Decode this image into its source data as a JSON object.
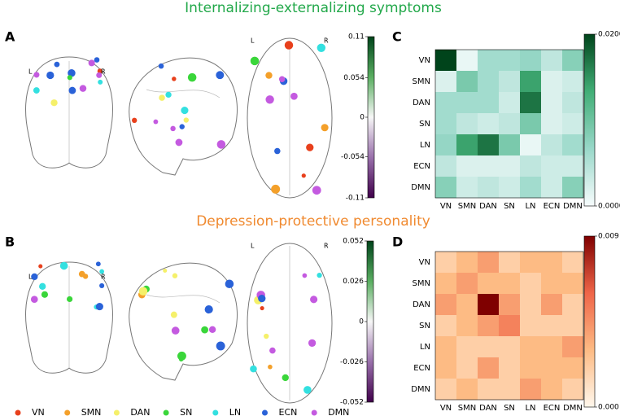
{
  "titles": {
    "top": {
      "text": "Internalizing-externalizing symptoms",
      "color": "#22a84a"
    },
    "bottom": {
      "text": "Depression-protective personality",
      "color": "#f08a30"
    }
  },
  "panel_labels": [
    "A",
    "B",
    "C",
    "D"
  ],
  "hemisphere_labels": {
    "left": "L",
    "right": "R"
  },
  "networks": [
    {
      "name": "VN",
      "color": "#e8401c"
    },
    {
      "name": "SMN",
      "color": "#f4a02a"
    },
    {
      "name": "DAN",
      "color": "#f5f06a"
    },
    {
      "name": "SN",
      "color": "#3ad63a"
    },
    {
      "name": "LN",
      "color": "#33e0e0"
    },
    {
      "name": "ECN",
      "color": "#2a62d8"
    },
    {
      "name": "DMN",
      "color": "#c45ae0"
    }
  ],
  "chart_data": [
    {
      "type": "heatmap",
      "x_categories": [
        "VN",
        "SMN",
        "DAN",
        "SN",
        "LN",
        "ECN",
        "DMN"
      ],
      "y_categories": [
        "VN",
        "SMN",
        "DAN",
        "SN",
        "LN",
        "ECN",
        "DMN"
      ],
      "values": [
        [
          0.02,
          0.001,
          0.006,
          0.006,
          0.007,
          0.004,
          0.008
        ],
        [
          0.002,
          0.009,
          0.006,
          0.004,
          0.014,
          0.002,
          0.003
        ],
        [
          0.006,
          0.006,
          0.006,
          0.003,
          0.017,
          0.002,
          0.004
        ],
        [
          0.006,
          0.004,
          0.003,
          0.004,
          0.009,
          0.002,
          0.003
        ],
        [
          0.007,
          0.014,
          0.017,
          0.009,
          0.001,
          0.004,
          0.006
        ],
        [
          0.004,
          0.002,
          0.002,
          0.002,
          0.004,
          0.003,
          0.003
        ],
        [
          0.008,
          0.003,
          0.004,
          0.003,
          0.006,
          0.003,
          0.008
        ]
      ],
      "colormap": [
        "#f7fcfd",
        "#99d8c9",
        "#41ae76",
        "#00441b"
      ],
      "zlim": [
        0,
        0.02
      ],
      "zticks": [
        {
          "value": 0.02,
          "label": "0.0200"
        },
        {
          "value": 0,
          "label": "0.0000"
        }
      ]
    },
    {
      "type": "heatmap",
      "x_categories": [
        "VN",
        "SMN",
        "DAN",
        "SN",
        "LN",
        "ECN",
        "DMN"
      ],
      "y_categories": [
        "VN",
        "SMN",
        "DAN",
        "SN",
        "LN",
        "ECN",
        "DMN"
      ],
      "values": [
        [
          0.002,
          0.003,
          0.004,
          0.002,
          0.003,
          0.003,
          0.002
        ],
        [
          0.003,
          0.004,
          0.003,
          0.003,
          0.002,
          0.003,
          0.003
        ],
        [
          0.004,
          0.003,
          0.009,
          0.004,
          0.002,
          0.004,
          0.002
        ],
        [
          0.002,
          0.003,
          0.004,
          0.005,
          0.002,
          0.002,
          0.002
        ],
        [
          0.003,
          0.002,
          0.002,
          0.002,
          0.003,
          0.003,
          0.004
        ],
        [
          0.003,
          0.002,
          0.004,
          0.002,
          0.003,
          0.003,
          0.003
        ],
        [
          0.002,
          0.003,
          0.002,
          0.002,
          0.004,
          0.003,
          0.002
        ]
      ],
      "colormap": [
        "#fff7ec",
        "#fdbb84",
        "#ef6548",
        "#7f0000"
      ],
      "zlim": [
        0,
        0.009
      ],
      "zticks": [
        0.009,
        {
          "value": 0,
          "label": "0.000"
        }
      ]
    },
    {
      "type": "colorbar",
      "colormap": [
        "#40004b",
        "#9970ab",
        "#f7f7f7",
        "#5aae61",
        "#00441b"
      ],
      "zlim": [
        -0.11,
        0.11
      ],
      "zticks": [
        0.11,
        0.054,
        0,
        -0.054,
        -0.11
      ]
    },
    {
      "type": "colorbar",
      "colormap": [
        "#40004b",
        "#9970ab",
        "#f7f7f7",
        "#5aae61",
        "#00441b"
      ],
      "zlim": [
        -0.052,
        0.052
      ],
      "zticks": [
        0.052,
        0.026,
        0,
        -0.026,
        -0.052
      ]
    }
  ]
}
